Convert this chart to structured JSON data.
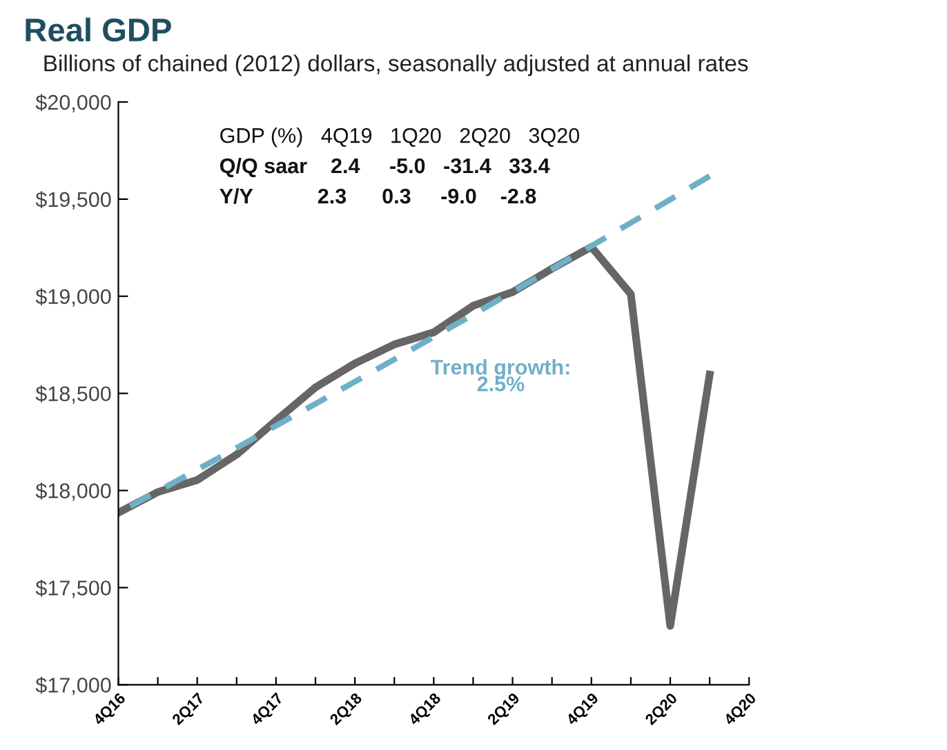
{
  "chart_data": {
    "type": "line",
    "title": "Real GDP",
    "subtitle": "Billions of chained (2012) dollars, seasonally adjusted at annual rates",
    "categories": [
      "4Q16",
      null,
      "2Q17",
      null,
      "4Q17",
      null,
      "2Q18",
      null,
      "4Q18",
      null,
      "2Q19",
      null,
      "4Q19",
      null,
      "2Q20",
      null,
      "4Q20"
    ],
    "series": [
      {
        "color": "#666666",
        "line_style": "solid",
        "values": [
          17886,
          17992,
          18054,
          18185,
          18360,
          18531,
          18654,
          18752,
          18814,
          18951,
          19021,
          19142,
          19254,
          19011,
          17303,
          18597,
          null
        ]
      },
      {
        "name": "Trend growth:\n2.5%",
        "color": "#6fb0c8",
        "line_style": "dashed",
        "values": [
          17886,
          17996,
          18107,
          18219,
          18333,
          18446,
          18560,
          18675,
          18790,
          18906,
          19023,
          19141,
          19259,
          19378,
          19498,
          19619,
          null
        ]
      }
    ],
    "ylim": [
      17000,
      20000
    ],
    "yticks": [
      {
        "value": 17000,
        "label": "$17,000"
      },
      {
        "value": 17500,
        "label": "$17,500"
      },
      {
        "value": 18000,
        "label": "$18,000"
      },
      {
        "value": 18500,
        "label": "$18,500"
      },
      {
        "value": 19000,
        "label": "$19,000"
      },
      {
        "value": 19500,
        "label": "$19,500"
      },
      {
        "value": 20000,
        "label": "$20,000"
      }
    ],
    "grid": false,
    "legend": false,
    "marker": "none",
    "annotations": [
      "GDP (%)   4Q19   1Q20   2Q20   3Q20",
      "Q/Q saar    2.4     -5.0   -31.4   33.4",
      "Y/Y           2.3      0.3     -9.0    -2.8"
    ]
  }
}
